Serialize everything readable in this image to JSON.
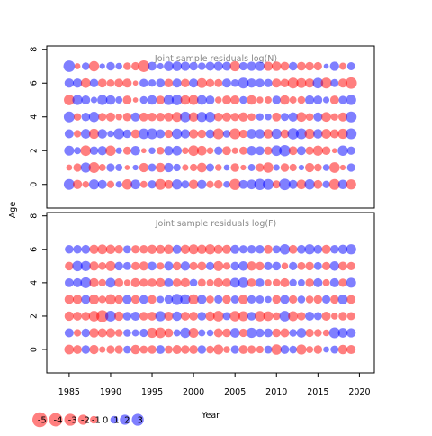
{
  "colors": {
    "positive": "#0000ff",
    "negative": "#ff0000",
    "bubble_opacity": 0.5
  },
  "chart_data": {
    "type": "bubble",
    "xlabel": "Year",
    "ylabel": "Age",
    "xlim": [
      1982.3,
      2021.8
    ],
    "ylim": [
      -1.4,
      8.2
    ],
    "x_ticks": [
      1985,
      1990,
      1995,
      2000,
      2005,
      2010,
      2015,
      2020
    ],
    "y_ticks": [
      0,
      2,
      4,
      6,
      8
    ],
    "years": [
      1985,
      1986,
      1987,
      1988,
      1989,
      1990,
      1991,
      1992,
      1993,
      1994,
      1995,
      1996,
      1997,
      1998,
      1999,
      2000,
      2001,
      2002,
      2003,
      2004,
      2005,
      2006,
      2007,
      2008,
      2009,
      2010,
      2011,
      2012,
      2013,
      2014,
      2015,
      2016,
      2017,
      2018,
      2019
    ],
    "legend": {
      "values": [
        -5,
        -4,
        -3,
        -2,
        -1,
        0,
        1,
        2,
        3
      ],
      "labels": [
        "-5",
        "-4",
        "-3",
        "-2",
        "-1",
        "0",
        "1",
        "2",
        "3"
      ]
    },
    "panels": [
      {
        "title": "Joint sample residuals log(N)",
        "ages": [
          0,
          1,
          2,
          3,
          4,
          5,
          6,
          7
        ],
        "residuals": [
          [
            2.3,
            -1.6,
            -0.7,
            2.0,
            1.5,
            -0.9,
            0.6,
            -2.1,
            1.8,
            -0.8,
            1.2,
            -2.3,
            -1.4,
            2.0,
            1.1,
            -1.7,
            1.6,
            -0.9,
            -1.3,
            0.7,
            -2.5,
            1.4,
            1.8,
            2.6,
            2.3,
            -1.1,
            2.7,
            1.5,
            -1.8,
            2.1,
            -1.4,
            0.9,
            -2.4,
            1.7,
            -2.0
          ],
          [
            -0.5,
            -1.2,
            2.0,
            -2.3,
            -0.8,
            1.2,
            0.8,
            -0.3,
            0.4,
            -1.6,
            1.1,
            -1.7,
            1.6,
            0.9,
            -0.6,
            -0.9,
            -1.8,
            1.1,
            -0.7,
            0.5,
            -1.3,
            -0.4,
            0.8,
            -1.2,
            -2.1,
            0.6,
            -1.3,
            -0.9,
            0.4,
            -1.6,
            -1.0,
            0.7,
            -2.2,
            -0.4,
            1.2
          ],
          [
            1.9,
            0.8,
            -2.2,
            1.3,
            1.6,
            -2.1,
            0.6,
            -1.1,
            1.7,
            -0.3,
            0.7,
            -1.0,
            1.6,
            1.8,
            -0.7,
            -2.2,
            -1.8,
            -0.7,
            1.2,
            -1.4,
            -0.6,
            -1.1,
            1.7,
            1.4,
            -1.2,
            2.2,
            2.6,
            -1.4,
            1.5,
            -1.2,
            -2.0,
            -1.3,
            -0.3,
            2.1,
            1.2
          ],
          [
            1.5,
            -0.9,
            1.8,
            -2.0,
            1.7,
            0.7,
            2.3,
            1.3,
            -1.4,
            2.2,
            2.3,
            1.5,
            -1.2,
            2.1,
            1.6,
            -1.6,
            -1.3,
            1.4,
            -2.4,
            1.0,
            -2.4,
            -1.2,
            1.8,
            1.7,
            -1.7,
            2.0,
            -1.4,
            2.6,
            2.4,
            -2.0,
            1.7,
            -1.8,
            -1.5,
            -2.0,
            2.4
          ],
          [
            2.3,
            -0.9,
            1.3,
            2.1,
            -1.1,
            -1.5,
            -0.7,
            -1.3,
            1.5,
            -1.4,
            -1.3,
            -1.3,
            -1.4,
            -1.9,
            2.2,
            -1.7,
            2.0,
            2.1,
            -1.3,
            -1.5,
            -1.2,
            -1.6,
            -1.0,
            0.9,
            0.7,
            -1.4,
            1.1,
            1.6,
            -1.8,
            -1.0,
            1.5,
            -1.8,
            -0.9,
            -1.5,
            2.4
          ],
          [
            -2.2,
            2.0,
            1.5,
            0.6,
            2.0,
            1.7,
            0.8,
            -1.4,
            -0.3,
            1.0,
            1.7,
            -1.3,
            2.0,
            2.2,
            -1.7,
            -1.9,
            1.8,
            1.4,
            -0.7,
            -1.4,
            -1.5,
            1.0,
            -1.7,
            -0.7,
            -0.8,
            1.3,
            -1.7,
            -0.8,
            -1.0,
            1.6,
            1.4,
            0.6,
            -1.4,
            1.2,
            2.0
          ],
          [
            1.6,
            1.6,
            -1.8,
            1.3,
            -1.4,
            -1.0,
            -1.4,
            -1.5,
            -0.3,
            1.3,
            0.9,
            1.4,
            -1.3,
            1.5,
            -1.3,
            1.5,
            -1.9,
            -1.2,
            -1.1,
            1.5,
            1.0,
            2.3,
            1.6,
            1.4,
            1.2,
            -1.5,
            -1.3,
            -2.3,
            -1.9,
            -1.6,
            2.2,
            -2.3,
            1.1,
            -1.5,
            -2.7
          ],
          [
            2.7,
            -0.5,
            1.0,
            -2.1,
            0.4,
            1.3,
            0.7,
            -1.0,
            -1.2,
            -2.8,
            1.4,
            0.6,
            1.8,
            1.8,
            1.6,
            1.3,
            1.0,
            1.5,
            1.6,
            1.5,
            -2.0,
            1.2,
            1.6,
            1.7,
            -1.6,
            -1.7,
            -1.4,
            1.3,
            -1.4,
            -1.3,
            -1.2,
            0.3,
            1.6,
            -0.8,
            1.1
          ]
        ]
      },
      {
        "title": "Joint sample residuals log(F)",
        "ages": [
          0,
          1,
          2,
          3,
          4,
          5,
          6
        ],
        "residuals": [
          [
            -1.8,
            -1.4,
            1.3,
            -1.6,
            -0.6,
            -1.2,
            -1.2,
            1.0,
            -1.7,
            -1.1,
            -1.3,
            1.4,
            -1.1,
            -1.5,
            -1.3,
            -1.4,
            1.3,
            -1.0,
            -1.9,
            -0.7,
            1.2,
            -1.4,
            -1.2,
            -0.9,
            1.1,
            -2.1,
            1.4,
            1.0,
            -2.0,
            -0.8,
            -1.3,
            0.5,
            1.1,
            -1.7,
            -1.5
          ],
          [
            1.5,
            -0.9,
            1.3,
            -1.7,
            -1.5,
            -1.6,
            -1.0,
            1.0,
            0.8,
            1.2,
            -2.0,
            -2.2,
            -1.4,
            0.8,
            2.1,
            -1.9,
            0.8,
            0.7,
            -1.5,
            -1.3,
            1.8,
            -1.2,
            2.0,
            1.3,
            1.4,
            -1.3,
            -1.5,
            1.0,
            1.8,
            -1.2,
            -1.0,
            -0.7,
            2.4,
            1.8,
            1.6
          ],
          [
            -1.6,
            -1.4,
            -1.3,
            -2.2,
            -3.0,
            2.3,
            -1.6,
            1.3,
            1.5,
            -1.3,
            -1.4,
            2.0,
            -1.5,
            1.7,
            -1.4,
            -1.4,
            1.3,
            -1.6,
            -2.2,
            1.1,
            -2.1,
            -1.9,
            1.3,
            -2.1,
            -1.8,
            -1.0,
            2.2,
            -1.9,
            -1.2,
            1.5,
            1.1,
            -1.5,
            -0.7,
            -1.3,
            -1.1
          ],
          [
            -1.6,
            -1.6,
            1.5,
            -1.9,
            -0.9,
            -2.1,
            -1.3,
            1.5,
            -1.3,
            1.4,
            -1.3,
            0.8,
            1.3,
            2.5,
            2.0,
            -2.0,
            1.6,
            -1.0,
            1.2,
            -1.3,
            1.1,
            -1.7,
            1.2,
            1.1,
            0.7,
            -1.3,
            1.5,
            -1.2,
            1.0,
            -1.0,
            -1.3,
            1.2,
            -1.3,
            1.8,
            -1.4
          ],
          [
            1.4,
            1.5,
            2.3,
            -1.6,
            -0.9,
            1.8,
            -1.4,
            -0.6,
            -1.6,
            -1.2,
            -1.3,
            -1.6,
            1.4,
            -1.3,
            -1.6,
            1.0,
            -1.1,
            -0.8,
            -1.6,
            -1.3,
            1.8,
            2.1,
            -1.3,
            1.3,
            -0.7,
            -1.0,
            -1.5,
            0.9,
            0.8,
            -1.3,
            1.5,
            -0.8,
            1.5,
            -1.2,
            1.9
          ],
          [
            -1.3,
            2.1,
            2.0,
            -1.6,
            -1.0,
            -1.9,
            1.3,
            1.1,
            -1.2,
            -1.5,
            1.4,
            -0.9,
            1.5,
            -1.3,
            1.6,
            -1.2,
            -1.4,
            1.2,
            -1.9,
            -0.9,
            1.3,
            1.7,
            -1.6,
            -1.3,
            1.2,
            1.3,
            -0.7,
            1.2,
            -1.1,
            -1.3,
            1.1,
            -1.2,
            1.7,
            -1.4,
            -1.2
          ],
          [
            1.3,
            1.3,
            1.4,
            -1.6,
            -1.8,
            -1.7,
            -1.3,
            1.1,
            -1.2,
            -1.3,
            -1.6,
            -1.5,
            -1.7,
            1.5,
            -1.6,
            -1.9,
            -1.7,
            -2.0,
            -1.5,
            -1.5,
            1.5,
            1.2,
            1.3,
            1.3,
            -1.4,
            1.1,
            2.1,
            -1.4,
            1.4,
            2.0,
            1.4,
            -1.5,
            1.3,
            1.6,
            2.0
          ]
        ]
      }
    ]
  }
}
